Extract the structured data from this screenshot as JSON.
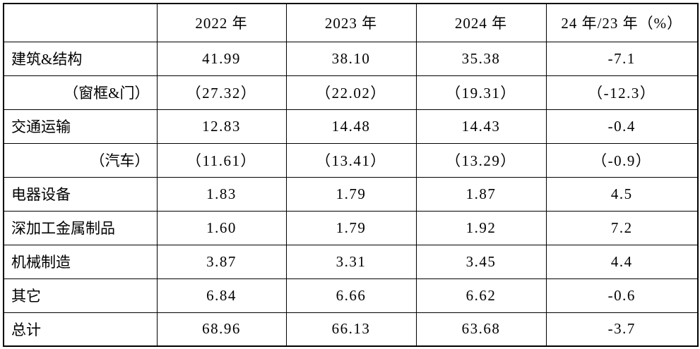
{
  "table": {
    "columns": [
      {
        "label": ""
      },
      {
        "label": "2022 年"
      },
      {
        "label": "2023 年"
      },
      {
        "label": "2024 年"
      },
      {
        "label": "24 年/23 年（%）"
      }
    ],
    "rows": [
      {
        "label": "建筑&结构",
        "indent": false,
        "values": [
          "41.99",
          "38.10",
          "35.38",
          "-7.1"
        ]
      },
      {
        "label": "（窗框&门）",
        "indent": true,
        "values": [
          "（27.32）",
          "（22.02）",
          "（19.31）",
          "（-12.3）"
        ]
      },
      {
        "label": "交通运输",
        "indent": false,
        "values": [
          "12.83",
          "14.48",
          "14.43",
          "-0.4"
        ]
      },
      {
        "label": "（汽车）",
        "indent": true,
        "values": [
          "（11.61）",
          "（13.41）",
          "（13.29）",
          "（-0.9）"
        ]
      },
      {
        "label": "电器设备",
        "indent": false,
        "values": [
          "1.83",
          "1.79",
          "1.87",
          "4.5"
        ]
      },
      {
        "label": "深加工金属制品",
        "indent": false,
        "values": [
          "1.60",
          "1.79",
          "1.92",
          "7.2"
        ]
      },
      {
        "label": "机械制造",
        "indent": false,
        "values": [
          "3.87",
          "3.31",
          "3.45",
          "4.4"
        ]
      },
      {
        "label": "其它",
        "indent": false,
        "values": [
          "6.84",
          "6.66",
          "6.62",
          "-0.6"
        ]
      },
      {
        "label": "总计",
        "indent": false,
        "values": [
          "68.96",
          "66.13",
          "63.68",
          "-3.7"
        ]
      }
    ],
    "colors": {
      "border": "#000000",
      "text": "#000000",
      "background": "#ffffff"
    }
  }
}
